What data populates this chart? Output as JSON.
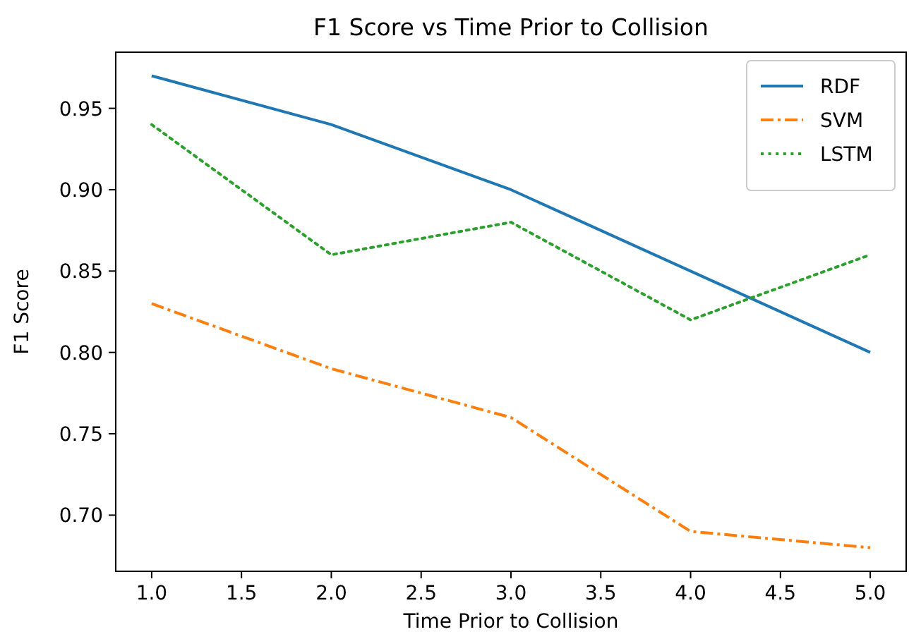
{
  "chart_data": {
    "type": "line",
    "title": "F1 Score vs Time Prior to Collision",
    "xlabel": "Time Prior to Collision",
    "ylabel": "F1 Score",
    "x": [
      1,
      2,
      3,
      4,
      5
    ],
    "series": [
      {
        "name": "RDF",
        "color": "#1f77b4",
        "line_style": "solid",
        "values": [
          0.97,
          0.94,
          0.9,
          0.85,
          0.8
        ]
      },
      {
        "name": "SVM",
        "color": "#ff7f0e",
        "line_style": "dashdot",
        "values": [
          0.83,
          0.79,
          0.76,
          0.69,
          0.68
        ]
      },
      {
        "name": "LSTM",
        "color": "#2ca02c",
        "line_style": "dotted",
        "values": [
          0.94,
          0.86,
          0.88,
          0.82,
          0.86
        ]
      }
    ],
    "xlim": [
      0.8,
      5.2
    ],
    "xticks": [
      {
        "value": 1,
        "label": "1.0"
      },
      {
        "value": 1.5,
        "label": "1.5"
      },
      {
        "value": 2,
        "label": "2.0"
      },
      {
        "value": 2.5,
        "label": "2.5"
      },
      {
        "value": 3,
        "label": "3.0"
      },
      {
        "value": 3.5,
        "label": "3.5"
      },
      {
        "value": 4,
        "label": "4.0"
      },
      {
        "value": 4.5,
        "label": "4.5"
      },
      {
        "value": 5,
        "label": "5.0"
      }
    ],
    "ylim": [
      0.6655,
      0.9845
    ],
    "yticks": [
      {
        "value": 0.7,
        "label": "0.70"
      },
      {
        "value": 0.75,
        "label": "0.75"
      },
      {
        "value": 0.8,
        "label": "0.80"
      },
      {
        "value": 0.85,
        "label": "0.85"
      },
      {
        "value": 0.9,
        "label": "0.90"
      },
      {
        "value": 0.95,
        "label": "0.95"
      }
    ],
    "grid": false,
    "legend": "top right"
  }
}
